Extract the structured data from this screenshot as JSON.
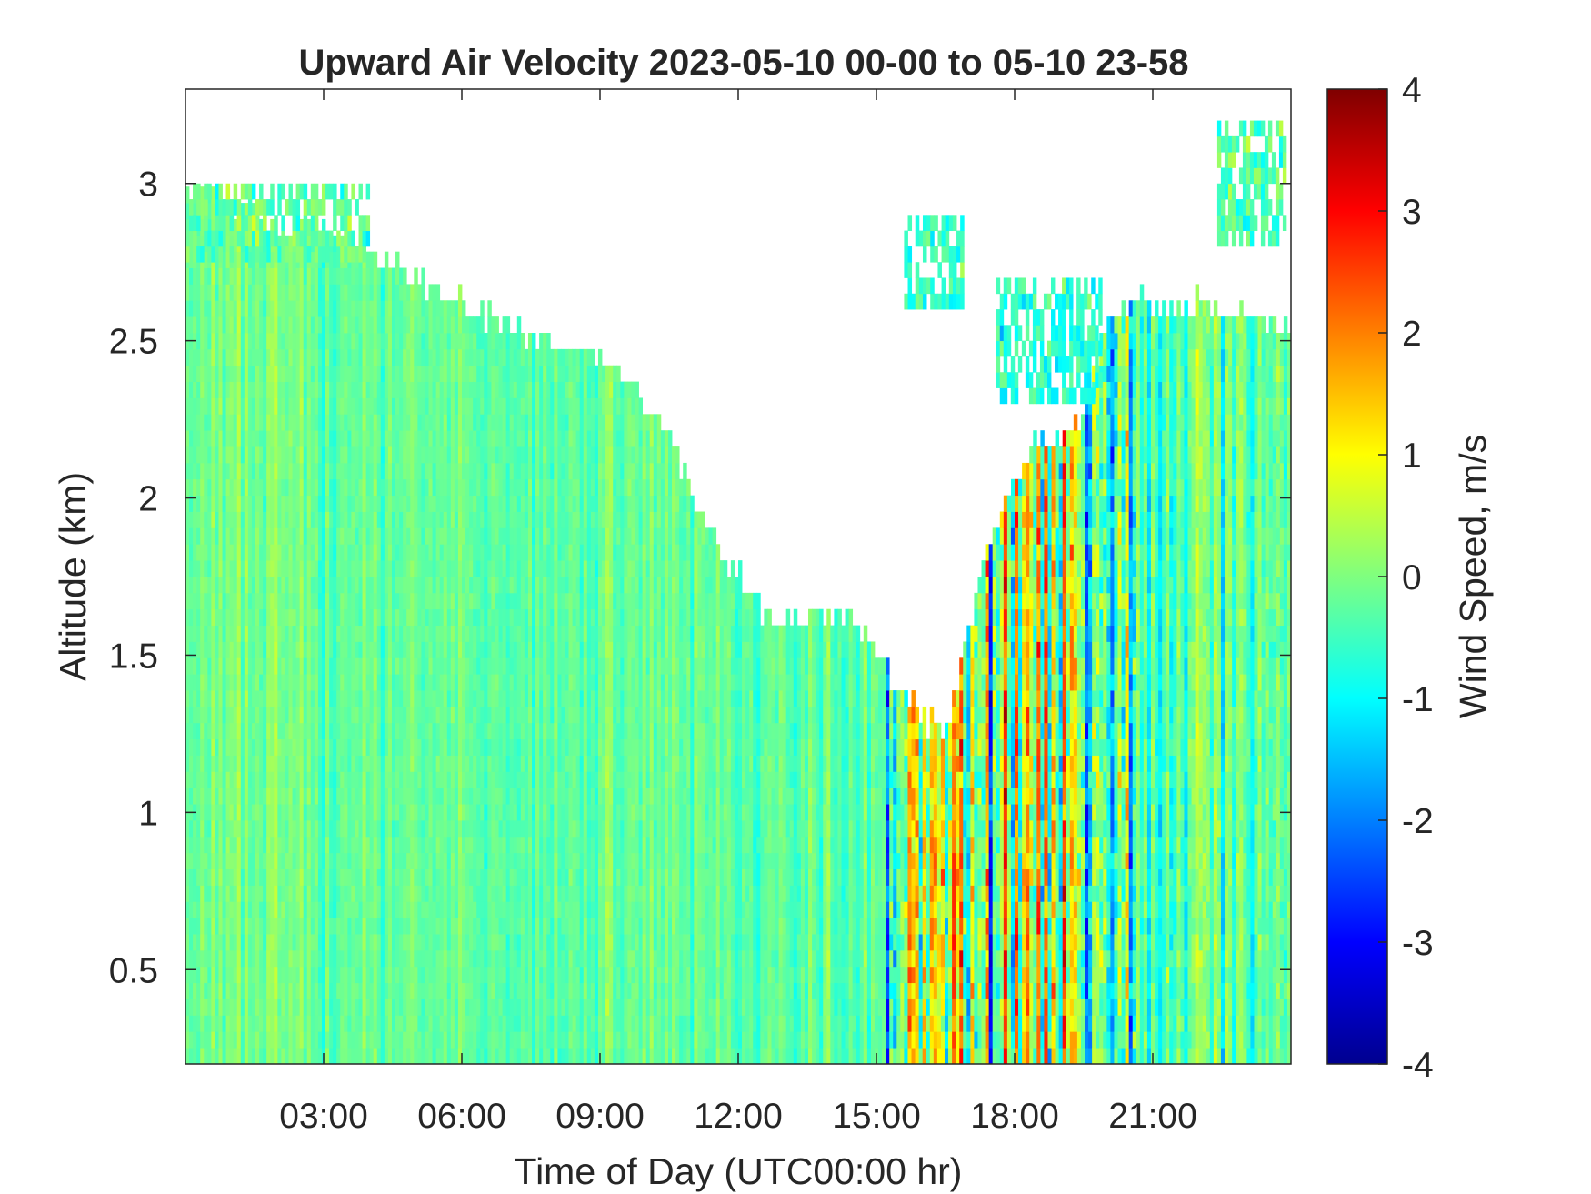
{
  "chart_data": {
    "type": "heatmap",
    "title": "Upward Air Velocity 2023-05-10 00-00 to 05-10 23-58",
    "xlabel": "Time of Day (UTC00:00 hr)",
    "ylabel": "Altitude (km)",
    "xlim_hours": [
      0,
      24
    ],
    "ylim": [
      0.2,
      3.3
    ],
    "xticks": [
      {
        "value": 3,
        "label": "03:00"
      },
      {
        "value": 6,
        "label": "06:00"
      },
      {
        "value": 9,
        "label": "09:00"
      },
      {
        "value": 12,
        "label": "12:00"
      },
      {
        "value": 15,
        "label": "15:00"
      },
      {
        "value": 18,
        "label": "18:00"
      },
      {
        "value": 21,
        "label": "21:00"
      }
    ],
    "yticks": [
      {
        "value": 0.5,
        "label": "0.5"
      },
      {
        "value": 1,
        "label": "1"
      },
      {
        "value": 1.5,
        "label": "1.5"
      },
      {
        "value": 2,
        "label": "2"
      },
      {
        "value": 2.5,
        "label": "2.5"
      },
      {
        "value": 3,
        "label": "3"
      }
    ],
    "colorbar": {
      "label": "Wind Speed, m/s",
      "colormap": "jet",
      "clim": [
        -4,
        4
      ],
      "ticks": [
        {
          "value": 4,
          "label": "4"
        },
        {
          "value": 3,
          "label": "3"
        },
        {
          "value": 2,
          "label": "2"
        },
        {
          "value": 1,
          "label": "1"
        },
        {
          "value": 0,
          "label": "0"
        },
        {
          "value": -1,
          "label": "-1"
        },
        {
          "value": -2,
          "label": "-2"
        },
        {
          "value": -3,
          "label": "-3"
        },
        {
          "value": -4,
          "label": "-4"
        }
      ]
    },
    "data_top_altitude_km": [
      {
        "hour": 0.0,
        "top": 2.95
      },
      {
        "hour": 0.5,
        "top": 3.0
      },
      {
        "hour": 1.0,
        "top": 2.95
      },
      {
        "hour": 2.0,
        "top": 2.88
      },
      {
        "hour": 3.0,
        "top": 2.85
      },
      {
        "hour": 4.0,
        "top": 2.8
      },
      {
        "hour": 5.0,
        "top": 2.7
      },
      {
        "hour": 6.0,
        "top": 2.62
      },
      {
        "hour": 7.0,
        "top": 2.55
      },
      {
        "hour": 8.0,
        "top": 2.5
      },
      {
        "hour": 9.0,
        "top": 2.45
      },
      {
        "hour": 10.0,
        "top": 2.3
      },
      {
        "hour": 10.5,
        "top": 2.2
      },
      {
        "hour": 11.0,
        "top": 2.0
      },
      {
        "hour": 11.5,
        "top": 1.85
      },
      {
        "hour": 12.0,
        "top": 1.75
      },
      {
        "hour": 12.5,
        "top": 1.65
      },
      {
        "hour": 13.0,
        "top": 1.6
      },
      {
        "hour": 13.5,
        "top": 1.62
      },
      {
        "hour": 14.0,
        "top": 1.6
      },
      {
        "hour": 14.5,
        "top": 1.6
      },
      {
        "hour": 15.0,
        "top": 1.5
      },
      {
        "hour": 15.5,
        "top": 1.4
      },
      {
        "hour": 16.0,
        "top": 1.3
      },
      {
        "hour": 16.5,
        "top": 1.25
      },
      {
        "hour": 17.0,
        "top": 1.6
      },
      {
        "hour": 17.5,
        "top": 1.9
      },
      {
        "hour": 18.0,
        "top": 2.05
      },
      {
        "hour": 18.5,
        "top": 2.2
      },
      {
        "hour": 19.0,
        "top": 2.2
      },
      {
        "hour": 19.5,
        "top": 2.25
      },
      {
        "hour": 20.0,
        "top": 2.6
      },
      {
        "hour": 21.0,
        "top": 2.62
      },
      {
        "hour": 22.0,
        "top": 2.62
      },
      {
        "hour": 23.0,
        "top": 2.58
      },
      {
        "hour": 24.0,
        "top": 2.55
      }
    ],
    "upper_layers": [
      {
        "hour_start": 0.0,
        "hour_end": 4.0,
        "alt_bottom": 2.75,
        "alt_top": 3.0,
        "mean": -0.2
      },
      {
        "hour_start": 15.6,
        "hour_end": 16.9,
        "alt_bottom": 2.6,
        "alt_top": 2.9,
        "mean": -0.6
      },
      {
        "hour_start": 17.6,
        "hour_end": 19.9,
        "alt_bottom": 2.3,
        "alt_top": 2.7,
        "mean": -0.7
      },
      {
        "hour_start": 22.4,
        "hour_end": 23.9,
        "alt_bottom": 2.8,
        "alt_top": 3.2,
        "mean": -0.3
      }
    ],
    "velocity_regimes": [
      {
        "hour_start": 0.0,
        "hour_end": 15.2,
        "mean": -0.2,
        "spread": 0.5
      },
      {
        "hour_start": 15.2,
        "hour_end": 20.6,
        "mean": 0.0,
        "spread": 2.4
      },
      {
        "hour_start": 20.6,
        "hour_end": 24.0,
        "mean": -0.3,
        "spread": 1.0
      }
    ]
  }
}
